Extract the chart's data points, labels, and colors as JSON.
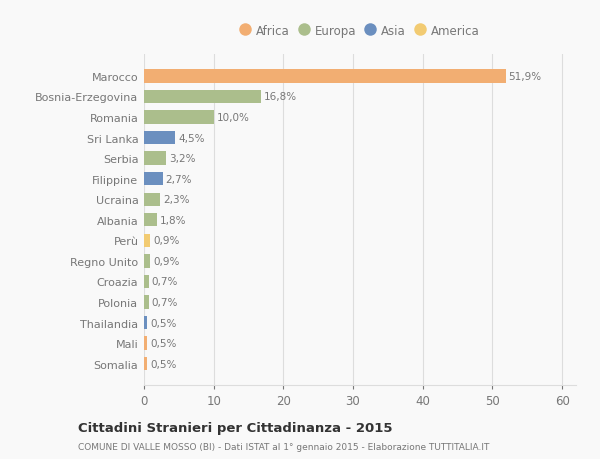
{
  "countries": [
    "Somalia",
    "Mali",
    "Thailandia",
    "Polonia",
    "Croazia",
    "Regno Unito",
    "Perù",
    "Albania",
    "Ucraina",
    "Filippine",
    "Serbia",
    "Sri Lanka",
    "Romania",
    "Bosnia-Erzegovina",
    "Marocco"
  ],
  "values": [
    0.5,
    0.5,
    0.5,
    0.7,
    0.7,
    0.9,
    0.9,
    1.8,
    2.3,
    2.7,
    3.2,
    4.5,
    10.0,
    16.8,
    51.9
  ],
  "continents": [
    "Africa",
    "Africa",
    "Asia",
    "Europa",
    "Europa",
    "Europa",
    "America",
    "Europa",
    "Europa",
    "Asia",
    "Europa",
    "Asia",
    "Europa",
    "Europa",
    "Africa"
  ],
  "continent_colors": {
    "Africa": "#F2AE72",
    "Europa": "#ABBE8C",
    "Asia": "#6B8FBF",
    "America": "#F2CB72"
  },
  "labels": [
    "0,5%",
    "0,5%",
    "0,5%",
    "0,7%",
    "0,7%",
    "0,9%",
    "0,9%",
    "1,8%",
    "2,3%",
    "2,7%",
    "3,2%",
    "4,5%",
    "10,0%",
    "16,8%",
    "51,9%"
  ],
  "title": "Cittadini Stranieri per Cittadinanza - 2015",
  "subtitle": "COMUNE DI VALLE MOSSO (BI) - Dati ISTAT al 1° gennaio 2015 - Elaborazione TUTTITALIA.IT",
  "xlabel_ticks": [
    0,
    10,
    20,
    30,
    40,
    50,
    60
  ],
  "xlim": [
    0,
    62
  ],
  "legend_order": [
    "Africa",
    "Europa",
    "Asia",
    "America"
  ],
  "background_color": "#f9f9f9",
  "bar_height": 0.65,
  "grid_color": "#dddddd",
  "text_color": "#777777",
  "title_color": "#333333",
  "subtitle_color": "#777777"
}
